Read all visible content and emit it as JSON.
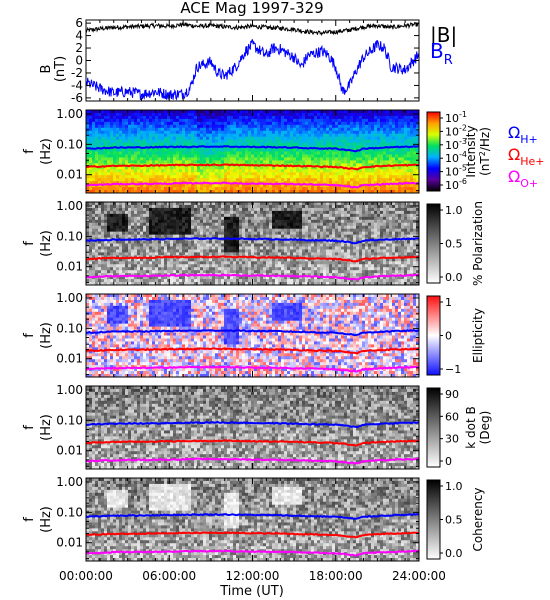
{
  "chart_data": {
    "title": "ACE Mag 1997-329",
    "xlabel": "Time (UT)",
    "x_ticks": [
      "00:00:00",
      "06:00:00",
      "12:00:00",
      "18:00:00",
      "24:00:00"
    ],
    "x_hours": [
      0,
      6,
      12,
      18,
      24
    ],
    "panels": [
      {
        "type": "line",
        "ylabel": [
          "B",
          "(nT)"
        ],
        "ylim": [
          -6.5,
          6.5
        ],
        "y_ticks": [
          6,
          4,
          2,
          0,
          -2,
          -4,
          -6
        ],
        "legend": [
          "|B|",
          "B_R"
        ],
        "series": [
          {
            "name": "|B|",
            "color": "#000000",
            "x": [
              0,
              1,
              2,
              3,
              4,
              5,
              6,
              7,
              8,
              9,
              10,
              11,
              12,
              13,
              14,
              15,
              16,
              17,
              18,
              19,
              20,
              21,
              22,
              23,
              24
            ],
            "y": [
              4.8,
              5.1,
              5.3,
              5.4,
              5.5,
              5.6,
              5.5,
              5.8,
              5.5,
              5.6,
              5.4,
              5.3,
              5.5,
              5.3,
              5.2,
              5.0,
              4.6,
              4.4,
              4.6,
              4.9,
              5.4,
              5.6,
              5.3,
              5.6,
              5.8
            ]
          },
          {
            "name": "B_R",
            "color": "#0000ff",
            "x": [
              0,
              1,
              2,
              3,
              4,
              5,
              6,
              7,
              7.5,
              8,
              9,
              9.5,
              10,
              10.8,
              11.5,
              12,
              13,
              13.5,
              14,
              15,
              15.5,
              16,
              17,
              17.5,
              18,
              18.5,
              19,
              19.5,
              20,
              21,
              21.5,
              22,
              23,
              24
            ],
            "y": [
              -3.5,
              -4.5,
              -5.2,
              -5.0,
              -5.4,
              -5.0,
              -5.5,
              -5.3,
              -4.5,
              -1.0,
              -0.2,
              -2.0,
              -2.5,
              -1.0,
              1.5,
              2.5,
              0.8,
              2.0,
              1.8,
              0.5,
              -1.0,
              0.8,
              1.5,
              0.8,
              -1.0,
              -5.0,
              -4.0,
              -1.5,
              0.5,
              2.5,
              2.0,
              -1.0,
              -1.5,
              1.0
            ]
          }
        ]
      },
      {
        "type": "heatmap",
        "ylabel": [
          "f",
          "(Hz)"
        ],
        "y_ticks": [
          "1.00",
          "0.10",
          "0.01"
        ],
        "ylim": [
          0.0025,
          1.35
        ],
        "cbar_label": [
          "Intensity",
          "(nT^2/Hz)"
        ],
        "cbar_ticks": [
          "10^-1",
          "10^-2",
          "10^-3",
          "10^-4",
          "10^-5",
          "10^-6"
        ],
        "cbar_colors": [
          "#000000",
          "#5a00a0",
          "#0000ff",
          "#00b0ff",
          "#00e060",
          "#d8ff00",
          "#ffa000",
          "#ff0000",
          "#ffffff"
        ],
        "show_legend": true
      },
      {
        "type": "heatmap",
        "ylabel": [
          "f",
          "(Hz)"
        ],
        "y_ticks": [
          "1.00",
          "0.10",
          "0.01"
        ],
        "ylim": [
          0.0025,
          1.35
        ],
        "cbar_label": [
          "% Polarization"
        ],
        "cbar_ticks": [
          "1.0",
          "0.5",
          "0.0"
        ],
        "cbar_colors": [
          "#ffffff",
          "#000000"
        ]
      },
      {
        "type": "heatmap",
        "ylabel": [
          "f",
          "(Hz)"
        ],
        "y_ticks": [
          "1.00",
          "0.10",
          "0.01"
        ],
        "ylim": [
          0.0025,
          1.35
        ],
        "cbar_label": [
          "Ellipticity"
        ],
        "cbar_ticks": [
          "1",
          "0",
          "−1"
        ],
        "cbar_colors": [
          "#1010ff",
          "#ffffff",
          "#ff1010"
        ]
      },
      {
        "type": "heatmap",
        "ylabel": [
          "f",
          "(Hz)"
        ],
        "y_ticks": [
          "1.00",
          "0.10",
          "0.01"
        ],
        "ylim": [
          0.0025,
          1.35
        ],
        "cbar_label": [
          "k dot B",
          "(Deg)"
        ],
        "cbar_ticks": [
          "90",
          "60",
          "30",
          "0"
        ],
        "cbar_colors": [
          "#ffffff",
          "#000000"
        ]
      },
      {
        "type": "heatmap",
        "ylabel": [
          "f",
          "(Hz)"
        ],
        "y_ticks": [
          "1.00",
          "0.10",
          "0.01"
        ],
        "ylim": [
          0.0025,
          1.35
        ],
        "cbar_label": [
          "Coherency"
        ],
        "cbar_ticks": [
          "1.0",
          "0.5",
          "0.0"
        ],
        "cbar_colors": [
          "#ffffff",
          "#000000"
        ]
      }
    ],
    "gyrofrequency_lines": [
      {
        "name": "Ω_H+",
        "label": "Ω",
        "sub": "H+",
        "color": "#0000ff",
        "x": [
          0,
          2,
          4,
          6,
          8,
          10,
          12,
          14,
          16,
          18,
          19.5,
          20,
          22,
          24
        ],
        "y": [
          0.072,
          0.078,
          0.079,
          0.082,
          0.084,
          0.085,
          0.082,
          0.08,
          0.075,
          0.072,
          0.06,
          0.072,
          0.08,
          0.085
        ]
      },
      {
        "name": "Ω_He+",
        "label": "Ω",
        "sub": "He+",
        "color": "#ff0000",
        "x": [
          0,
          2,
          4,
          6,
          8,
          10,
          12,
          14,
          16,
          18,
          19.5,
          20,
          22,
          24
        ],
        "y": [
          0.018,
          0.0195,
          0.0198,
          0.0205,
          0.021,
          0.0212,
          0.0205,
          0.02,
          0.019,
          0.018,
          0.015,
          0.018,
          0.02,
          0.021
        ]
      },
      {
        "name": "Ω_O+",
        "label": "Ω",
        "sub": "O+",
        "color": "#ff00ff",
        "x": [
          0,
          2,
          4,
          6,
          8,
          10,
          12,
          14,
          16,
          18,
          19.5,
          20,
          22,
          24
        ],
        "y": [
          0.0045,
          0.0049,
          0.005,
          0.0051,
          0.0053,
          0.0053,
          0.0051,
          0.005,
          0.0048,
          0.0045,
          0.0038,
          0.0045,
          0.005,
          0.0053
        ]
      }
    ]
  }
}
